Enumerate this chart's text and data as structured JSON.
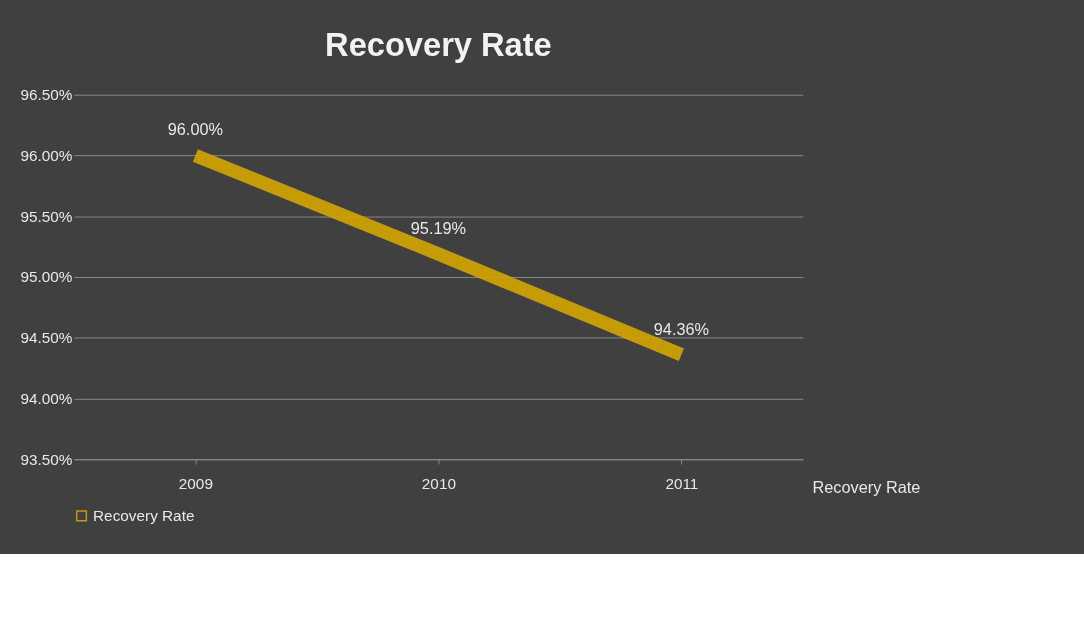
{
  "chart_data": {
    "type": "line",
    "title": "Recovery Rate",
    "categories": [
      "2009",
      "2010",
      "2011"
    ],
    "series": [
      {
        "name": "Recovery Rate",
        "color": "#d4a500",
        "values": [
          96.0,
          95.19,
          94.36
        ],
        "value_labels": [
          "96.00%",
          "95.19%",
          "94.36%"
        ]
      }
    ],
    "ylim": [
      93.5,
      96.5
    ],
    "yticks": [
      {
        "value": 93.5,
        "label": "93.50%"
      },
      {
        "value": 94.0,
        "label": "94.00%"
      },
      {
        "value": 94.5,
        "label": "94.50%"
      },
      {
        "value": 95.0,
        "label": "95.00%"
      },
      {
        "value": 95.5,
        "label": "95.50%"
      },
      {
        "value": 96.0,
        "label": "96.00%"
      },
      {
        "value": 96.5,
        "label": "96.50%"
      }
    ],
    "grid": "y",
    "legend": "bottom",
    "marker": "none",
    "line_style": "solid",
    "annotations": [
      "Recovery Rate"
    ]
  }
}
